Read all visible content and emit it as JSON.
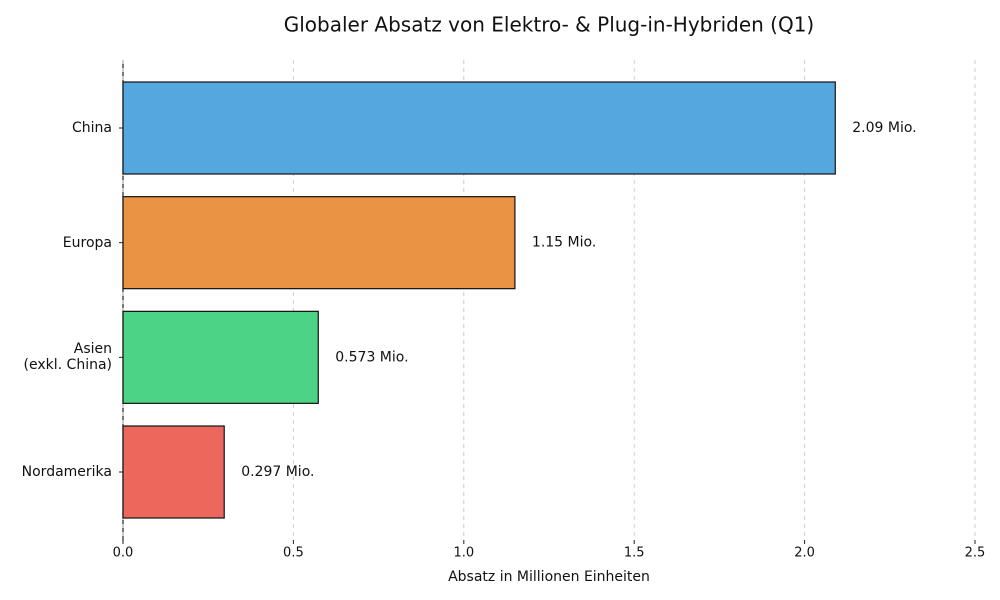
{
  "chart_data": {
    "type": "bar",
    "orientation": "horizontal",
    "title": "Globaler Absatz von Elektro- & Plug-in-Hybriden (Q1)",
    "x_label": "Absatz in Millionen Einheiten",
    "categories": [
      "China",
      "Europa",
      "Asien\n(exkl. China)",
      "Nordamerika"
    ],
    "values": [
      2.09,
      1.15,
      0.573,
      0.297
    ],
    "value_labels": [
      "2.09 Mio.",
      "1.15 Mio.",
      "0.573 Mio.",
      "0.297 Mio."
    ],
    "colors": [
      "#55a7e0",
      "#e99445",
      "#4cd385",
      "#ec685d"
    ],
    "xlim": [
      0,
      2.5
    ],
    "xticks": [
      {
        "value": 0,
        "label": "0.0"
      },
      0.5,
      {
        "value": 1,
        "label": "1.0"
      },
      1.5,
      {
        "value": 2,
        "label": "2.0"
      },
      2.5
    ],
    "grid": true
  }
}
